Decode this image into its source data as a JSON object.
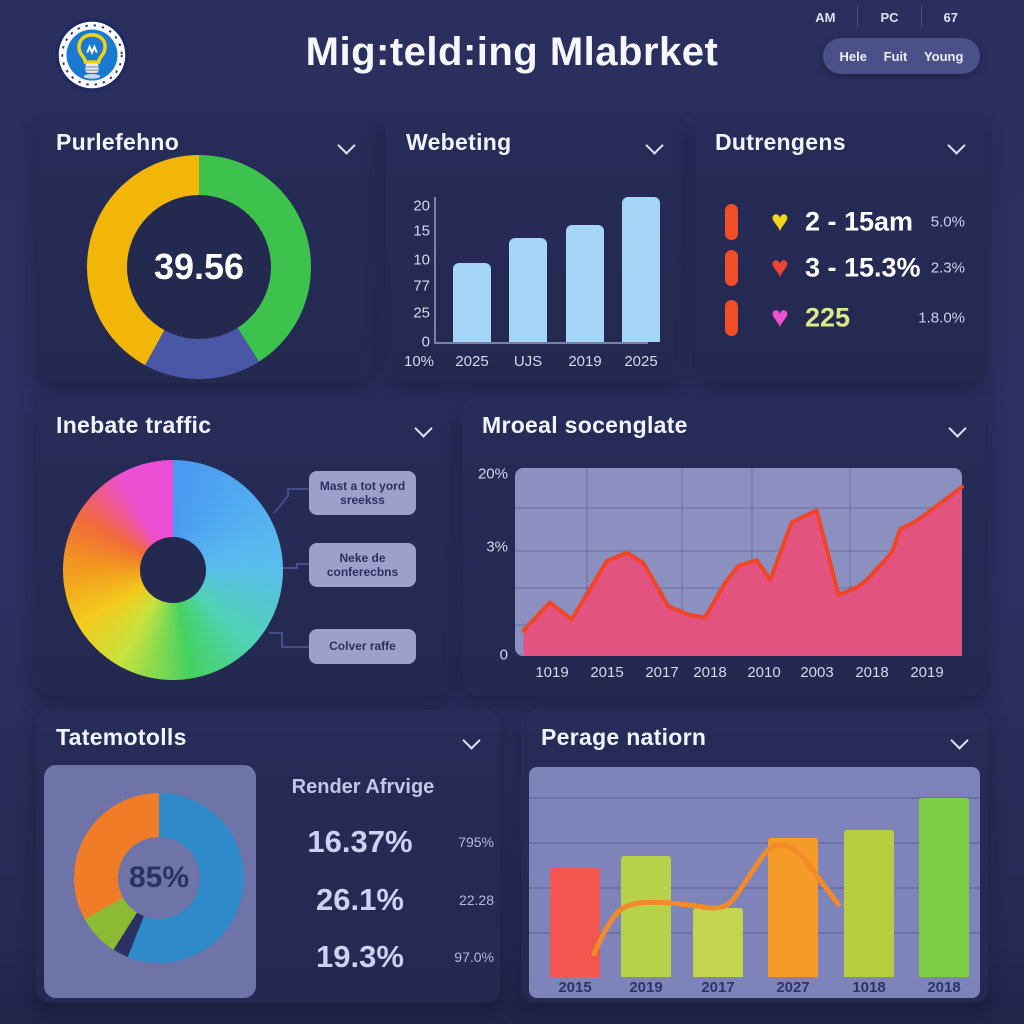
{
  "header": {
    "title": "Mig:teld:ing Mlabrket",
    "logo": "lightbulb-logo",
    "meta_items": [
      "AM",
      "PC",
      "67"
    ],
    "pill_items": [
      "Hele",
      "Fuit",
      "Young"
    ]
  },
  "cards": {
    "purlefehno": {
      "title": "Purlefehno",
      "center_value": "39.56"
    },
    "webeting": {
      "title": "Webeting"
    },
    "dutrengens": {
      "title": "Dutrengens",
      "rows": [
        {
          "heart_color": "#f0d518",
          "label": "2 - 15am",
          "label_color": "#ffffff",
          "value": "5.0%"
        },
        {
          "heart_color": "#ea4638",
          "label": "3 - 15.3%",
          "label_color": "#ffffff",
          "value": "2.3%"
        },
        {
          "heart_color": "#f04fd0",
          "label": "225",
          "label_color": "#dce98a",
          "value": "1.8.0%"
        }
      ]
    },
    "inebate": {
      "title": "Inebate traffic",
      "callouts": [
        "Mast a tot yord sreekss",
        "Neke de conferecbns",
        "Colver raffe"
      ]
    },
    "mroeal": {
      "title": "Mroeal socenglate"
    },
    "tatemotolls": {
      "title": "Tatemotolls",
      "center_value": "85%",
      "right_header": "Render Afrvige",
      "rows": [
        {
          "big": "16.37%",
          "small": "795%"
        },
        {
          "big": "26.1%",
          "small": "22.28"
        },
        {
          "big": "19.3%",
          "small": "97.0%"
        }
      ]
    },
    "perage": {
      "title": "Perage natiorn"
    }
  },
  "chart_data": [
    {
      "id": "purlefehno_donut",
      "type": "pie",
      "title": "Purlefehno",
      "center_label": "39.56",
      "slices": [
        {
          "name": "green",
          "value": 41,
          "color": "#3ec24e"
        },
        {
          "name": "indigo",
          "value": 17,
          "color": "#4a56a6"
        },
        {
          "name": "yellow",
          "value": 42,
          "color": "#f2b608"
        }
      ]
    },
    {
      "id": "webeting_bar",
      "type": "bar",
      "title": "Webeting",
      "categories": [
        "2025",
        "UJS",
        "2019",
        "2025"
      ],
      "values": [
        11.7,
        15.4,
        17.3,
        21.5
      ],
      "ylim": [
        0,
        21.5
      ],
      "y_tick_labels": [
        "20",
        "15",
        "10",
        "77",
        "25",
        "0"
      ],
      "origin_label": "10%",
      "bar_color": "#a5d5f7"
    },
    {
      "id": "inebate_pie",
      "type": "pie",
      "title": "Inebate traffic",
      "style": "rainbow-gradient-donut",
      "conic_stops": [
        [
          "#4a98f2",
          0
        ],
        [
          "#59bcee",
          85
        ],
        [
          "#4fd2b2",
          135
        ],
        [
          "#45d160",
          170
        ],
        [
          "#c8e23e",
          210
        ],
        [
          "#f2cb1d",
          240
        ],
        [
          "#f2991f",
          272
        ],
        [
          "#f06a3a",
          300
        ],
        [
          "#ee4fcf",
          330
        ],
        [
          "#ea4ed8",
          360
        ]
      ]
    },
    {
      "id": "mroeal_area",
      "type": "area",
      "title": "Mroeal socenglate",
      "y_tick_labels": [
        "20%",
        "3%",
        "0"
      ],
      "x_labels": [
        "1019",
        "2015",
        "2017",
        "2018",
        "2010",
        "2003",
        "2018",
        "2019"
      ],
      "ylim": [
        0,
        20
      ],
      "points": [
        [
          0.019,
          2.7
        ],
        [
          0.078,
          5.7
        ],
        [
          0.127,
          3.9
        ],
        [
          0.205,
          10.1
        ],
        [
          0.25,
          11.0
        ],
        [
          0.287,
          9.9
        ],
        [
          0.343,
          5.3
        ],
        [
          0.388,
          4.4
        ],
        [
          0.425,
          4.1
        ],
        [
          0.47,
          7.8
        ],
        [
          0.5,
          9.6
        ],
        [
          0.541,
          10.2
        ],
        [
          0.571,
          8.1
        ],
        [
          0.619,
          14.2
        ],
        [
          0.675,
          15.5
        ],
        [
          0.724,
          6.5
        ],
        [
          0.769,
          7.4
        ],
        [
          0.787,
          8.1
        ],
        [
          0.843,
          11.0
        ],
        [
          0.862,
          13.5
        ],
        [
          0.896,
          14.3
        ],
        [
          0.981,
          17.3
        ],
        [
          1.0,
          18.0
        ]
      ],
      "fill_color": "#e25380",
      "line_color": "#f04526"
    },
    {
      "id": "tatemotolls_donut",
      "type": "pie",
      "center_label": "85%",
      "slices": [
        {
          "name": "blue",
          "value": 56,
          "color": "#2f8aca"
        },
        {
          "name": "navy-sliver",
          "value": 3,
          "color": "#2b3162"
        },
        {
          "name": "green",
          "value": 8,
          "color": "#8cbb33"
        },
        {
          "name": "orange",
          "value": 33,
          "color": "#f07c28"
        }
      ]
    },
    {
      "id": "perage_bar",
      "type": "bar",
      "title": "Perage natiorn",
      "categories": [
        "2015",
        "2019",
        "2017",
        "2027",
        "1018",
        "2018"
      ],
      "values": [
        52,
        57.5,
        33,
        66,
        70,
        85
      ],
      "ylim": [
        0,
        100
      ],
      "colors": [
        "#f2574f",
        "#b7d14b",
        "#c3d44e",
        "#f59b28",
        "#b5cd3f",
        "#7ccf45"
      ],
      "line_color": "#f2892a",
      "line_points": [
        [
          0.144,
          11.1
        ],
        [
          0.181,
          28.6
        ],
        [
          0.225,
          35.4
        ],
        [
          0.299,
          35.7
        ],
        [
          0.373,
          33.8
        ],
        [
          0.413,
          32.5
        ],
        [
          0.447,
          34.4
        ],
        [
          0.491,
          49.2
        ],
        [
          0.535,
          62.7
        ],
        [
          0.572,
          63.2
        ],
        [
          0.609,
          57.1
        ],
        [
          0.646,
          46.0
        ],
        [
          0.686,
          34.6
        ]
      ]
    }
  ]
}
